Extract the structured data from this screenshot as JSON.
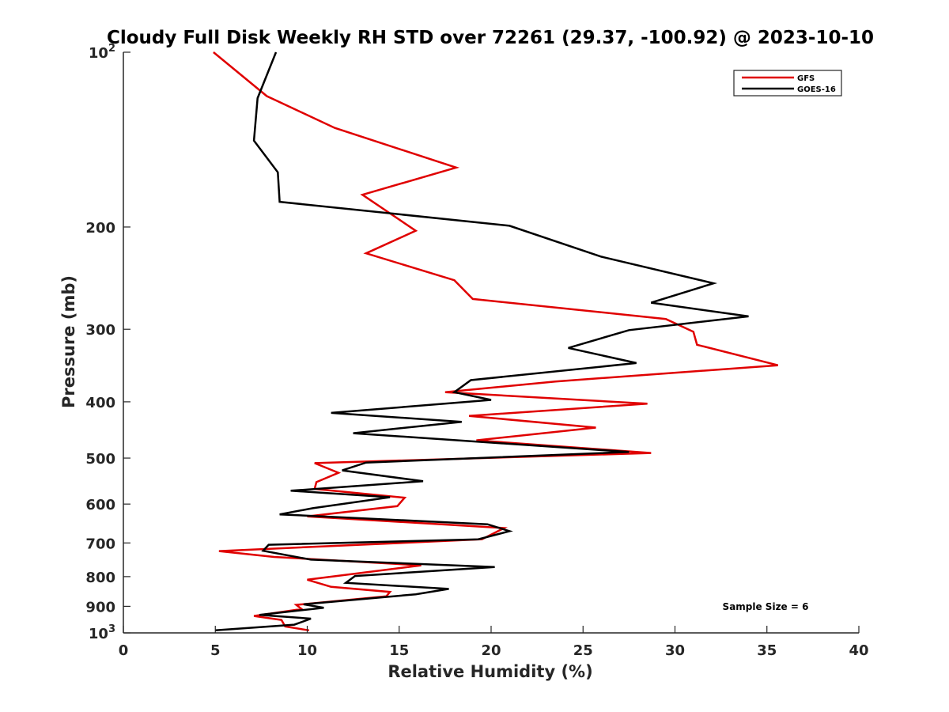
{
  "chart_data": {
    "type": "line",
    "orientation": "profile",
    "title": "Cloudy Full Disk Weekly RH STD over 72261 (29.37, -100.92) @ 2023-10-10",
    "xlabel": "Relative Humidity (%)",
    "ylabel": "Pressure (mb)",
    "xlim": [
      0,
      40
    ],
    "ylim": [
      100,
      1000
    ],
    "y_scale": "log",
    "y_reversed": true,
    "x_ticks": [
      0,
      5,
      10,
      15,
      20,
      25,
      30,
      35,
      40
    ],
    "x_tick_labels": [
      "0",
      "5",
      "10",
      "15",
      "20",
      "25",
      "30",
      "35",
      "40"
    ],
    "y_ticks": [
      100,
      200,
      300,
      400,
      500,
      600,
      700,
      800,
      900,
      1000
    ],
    "y_tick_labels": [
      {
        "base": "10",
        "exp": "2"
      },
      {
        "base": "200"
      },
      {
        "base": "300"
      },
      {
        "base": "400"
      },
      {
        "base": "500"
      },
      {
        "base": "600"
      },
      {
        "base": "700"
      },
      {
        "base": "800"
      },
      {
        "base": "900"
      },
      {
        "base": "10",
        "exp": "3"
      }
    ],
    "grid": false,
    "legend_position": "top-right",
    "note": "Sample Size = 6",
    "series": [
      {
        "name": "GFS",
        "color": "#e00000",
        "points": [
          [
            4.9,
            100
          ],
          [
            7.8,
            119
          ],
          [
            11.5,
            135
          ],
          [
            18.1,
            158
          ],
          [
            13.0,
            176
          ],
          [
            15.9,
            203
          ],
          [
            13.2,
            222
          ],
          [
            18.0,
            247
          ],
          [
            19.0,
            266
          ],
          [
            29.5,
            288
          ],
          [
            31.0,
            303
          ],
          [
            31.2,
            319
          ],
          [
            35.6,
            346
          ],
          [
            23.5,
            369
          ],
          [
            17.5,
            385
          ],
          [
            28.5,
            403
          ],
          [
            18.8,
            423
          ],
          [
            25.7,
            443
          ],
          [
            19.2,
            466
          ],
          [
            28.7,
            490
          ],
          [
            10.4,
            510
          ],
          [
            11.7,
            530
          ],
          [
            10.5,
            550
          ],
          [
            10.4,
            565
          ],
          [
            15.3,
            585
          ],
          [
            14.9,
            605
          ],
          [
            10.0,
            630
          ],
          [
            20.7,
            660
          ],
          [
            19.5,
            690
          ],
          [
            5.2,
            723
          ],
          [
            8.2,
            740
          ],
          [
            16.2,
            765
          ],
          [
            10.0,
            810
          ],
          [
            11.3,
            833
          ],
          [
            14.5,
            850
          ],
          [
            14.3,
            865
          ],
          [
            9.4,
            895
          ],
          [
            9.7,
            910
          ],
          [
            7.1,
            935
          ],
          [
            8.6,
            950
          ],
          [
            8.8,
            975
          ],
          [
            10.1,
            990
          ]
        ]
      },
      {
        "name": "GOES-16",
        "color": "#000000",
        "points": [
          [
            8.3,
            100
          ],
          [
            7.3,
            120
          ],
          [
            7.1,
            142
          ],
          [
            8.4,
            161
          ],
          [
            8.5,
            181
          ],
          [
            21.0,
            199
          ],
          [
            26.0,
            225
          ],
          [
            32.1,
            250
          ],
          [
            28.7,
            270
          ],
          [
            34.0,
            285
          ],
          [
            27.5,
            301
          ],
          [
            24.2,
            323
          ],
          [
            27.9,
            343
          ],
          [
            18.9,
            367
          ],
          [
            18.0,
            385
          ],
          [
            20.0,
            397
          ],
          [
            11.3,
            418
          ],
          [
            18.4,
            433
          ],
          [
            12.5,
            453
          ],
          [
            27.5,
            488
          ],
          [
            13.2,
            509
          ],
          [
            11.9,
            525
          ],
          [
            16.3,
            548
          ],
          [
            9.1,
            569
          ],
          [
            14.5,
            584
          ],
          [
            10.3,
            610
          ],
          [
            8.5,
            625
          ],
          [
            19.8,
            650
          ],
          [
            21.0,
            668
          ],
          [
            19.3,
            690
          ],
          [
            7.9,
            705
          ],
          [
            7.6,
            722
          ],
          [
            10.2,
            748
          ],
          [
            20.2,
            770
          ],
          [
            12.6,
            798
          ],
          [
            12.1,
            820
          ],
          [
            17.7,
            840
          ],
          [
            15.9,
            858
          ],
          [
            9.8,
            893
          ],
          [
            10.9,
            905
          ],
          [
            7.4,
            931
          ],
          [
            10.2,
            945
          ],
          [
            9.3,
            968
          ],
          [
            5.0,
            990
          ]
        ]
      }
    ]
  }
}
